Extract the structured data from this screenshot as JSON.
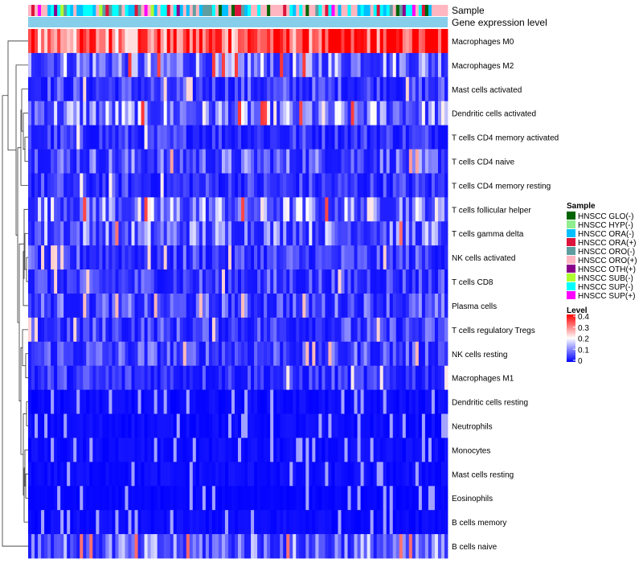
{
  "chart_data": {
    "type": "heatmap",
    "annotation_tracks": [
      "Sample",
      "Gene expression level"
    ],
    "row_labels": [
      "Macrophages M0",
      "Macrophages M2",
      "Mast cells activated",
      "Dendritic cells activated",
      "T cells CD4 memory activated",
      "T cells CD4 naive",
      "T cells CD4 memory resting",
      "T cells follicular helper",
      "T cells gamma delta",
      "NK cells activated",
      "T cells CD8",
      "Plasma cells",
      "T cells regulatory  Tregs",
      "NK cells resting",
      "Macrophages M1",
      "Dendritic cells resting",
      "Neutrophils",
      "Monocytes",
      "Mast cells resting",
      "Eosinophils",
      "B cells memory",
      "B cells naive"
    ],
    "row_mean_level": [
      0.3,
      0.12,
      0.06,
      0.12,
      0.05,
      0.08,
      0.05,
      0.12,
      0.1,
      0.06,
      0.06,
      0.07,
      0.06,
      0.07,
      0.05,
      0.02,
      0.02,
      0.02,
      0.02,
      0.01,
      0.02,
      0.1
    ],
    "sample_legend": {
      "title": "Sample",
      "entries": [
        {
          "label": "HNSCC GLO(-)",
          "color": "#006400"
        },
        {
          "label": "HNSCC HYP(-)",
          "color": "#90ee90"
        },
        {
          "label": "HNSCC ORA(-)",
          "color": "#00bfff"
        },
        {
          "label": "HNSCC ORA(+)",
          "color": "#dc143c"
        },
        {
          "label": "HNSCC ORO(-)",
          "color": "#5f9ea0"
        },
        {
          "label": "HNSCC ORO(+)",
          "color": "#ffb6c1"
        },
        {
          "label": "HNSCC OTH(+)",
          "color": "#8b008b"
        },
        {
          "label": "HNSCC SUB(-)",
          "color": "#adff2f"
        },
        {
          "label": "HNSCC SUP(-)",
          "color": "#00ffff"
        },
        {
          "label": "HNSCC SUP(+)",
          "color": "#ff00ff"
        }
      ]
    },
    "level_legend": {
      "title": "Level",
      "ticks": [
        "0.4",
        "0.3",
        "0.2",
        "0.1",
        "0"
      ],
      "min": 0,
      "max": 0.4,
      "colors": [
        "#0000ff",
        "#ffffff",
        "#ff0000"
      ]
    },
    "gene_expression_track_color": "#87ceeb",
    "n_columns": 130
  }
}
